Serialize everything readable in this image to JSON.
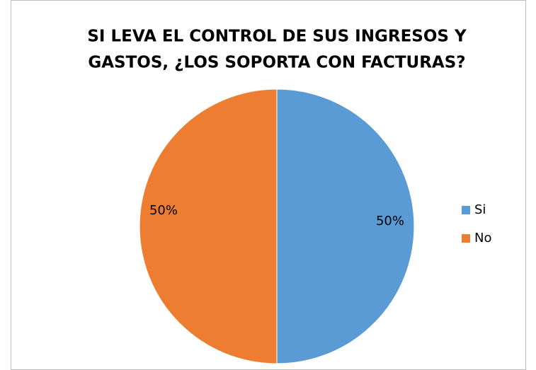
{
  "chart_data": {
    "type": "pie",
    "title": [
      "SI LEVA EL CONTROL DE SUS INGRESOS Y",
      "GASTOS, ¿LOS SOPORTA CON FACTURAS?"
    ],
    "categories": [
      "Si",
      "No"
    ],
    "values": [
      50,
      50
    ],
    "value_labels": [
      "50%",
      "50%"
    ],
    "colors": [
      "#5b9bd5",
      "#ed7d31"
    ],
    "legend": "right"
  }
}
